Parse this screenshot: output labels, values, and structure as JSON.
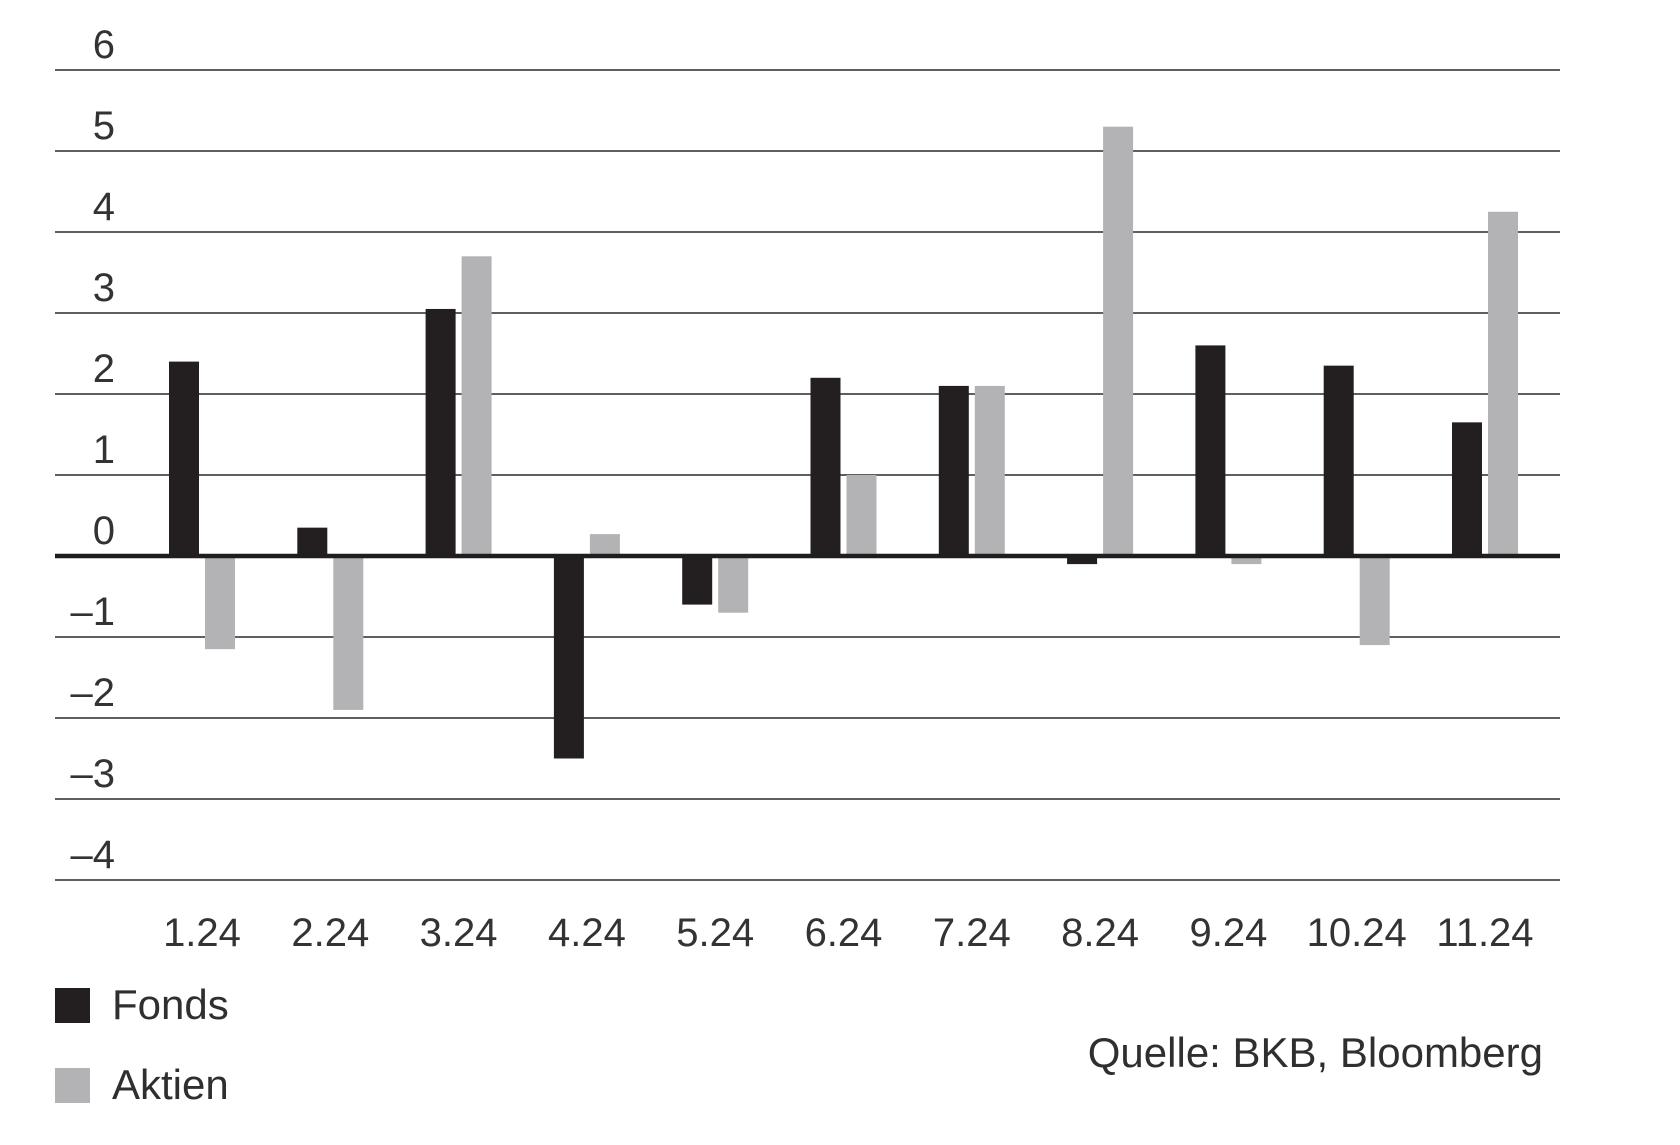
{
  "chart_data": {
    "type": "bar",
    "categories": [
      "1.24",
      "2.24",
      "3.24",
      "4.24",
      "5.24",
      "6.24",
      "7.24",
      "8.24",
      "9.24",
      "10.24",
      "11.24"
    ],
    "series": [
      {
        "name": "Fonds",
        "color": "#231f20",
        "values": [
          2.4,
          0.35,
          3.05,
          -2.5,
          -0.6,
          2.2,
          2.1,
          -0.1,
          2.6,
          2.35,
          1.65
        ]
      },
      {
        "name": "Aktien",
        "color": "#b3b3b5",
        "values": [
          -1.15,
          -1.9,
          3.7,
          0.27,
          -0.7,
          1.0,
          2.1,
          5.3,
          -0.1,
          -1.1,
          4.25
        ]
      }
    ],
    "yticks": [
      6,
      5,
      4,
      3,
      2,
      1,
      0,
      -1,
      -2,
      -3,
      -4
    ],
    "ytick_labels": [
      "6",
      "5",
      "4",
      "3",
      "2",
      "1",
      "0",
      "–1",
      "–2",
      "–3",
      "–4"
    ],
    "ylim": [
      -4,
      6
    ],
    "grid": true,
    "legend": "bottom-left"
  },
  "legend": {
    "items": [
      {
        "label": "Fonds",
        "color": "#231f20"
      },
      {
        "label": "Aktien",
        "color": "#b3b3b5"
      }
    ]
  },
  "source": "Quelle: BKB, Bloomberg"
}
